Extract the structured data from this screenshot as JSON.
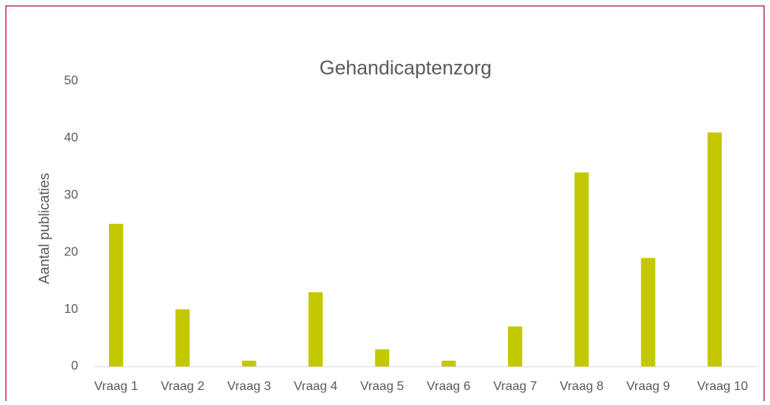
{
  "chart_data": {
    "type": "bar",
    "title": "Gehandicaptenzorg",
    "y_label": "Aantal publicaties",
    "categories": [
      "Vraag 1",
      "Vraag 2",
      "Vraag 3",
      "Vraag 4",
      "Vraag 5",
      "Vraag 6",
      "Vraag 7",
      "Vraag 8",
      "Vraag 9",
      "Vraag 10"
    ],
    "values": [
      25,
      10,
      1,
      13,
      3,
      1,
      7,
      34,
      19,
      41
    ],
    "color": "#c3c800",
    "ylim": [
      0,
      50
    ],
    "yticks": [
      0,
      10,
      20,
      30,
      40,
      50
    ],
    "grid": false
  }
}
